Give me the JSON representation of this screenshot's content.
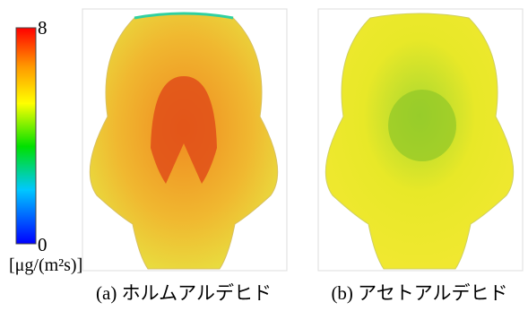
{
  "colorbar": {
    "max": "8",
    "min": "0",
    "unit": "[μg/(m²s)]"
  },
  "panels": [
    {
      "caption": "(a) ホルムアルデヒド"
    },
    {
      "caption": "(b) アセトアルデヒド"
    }
  ]
}
